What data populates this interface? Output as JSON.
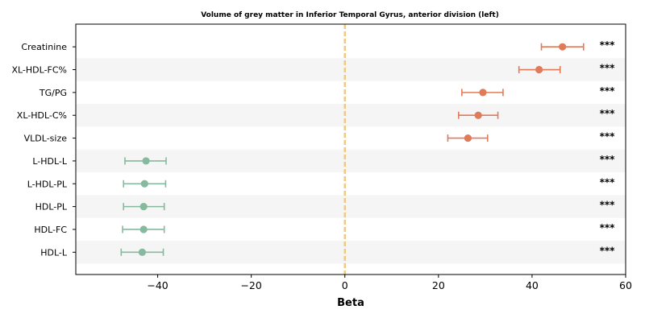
{
  "chart_data": {
    "type": "scatter",
    "subtype": "forest-plot",
    "title": "Volume of grey matter in Inferior Temporal Gyrus, anterior division (left)",
    "xlabel": "Beta",
    "ylabel": "",
    "xlim": [
      -57.5,
      60
    ],
    "xticks": [
      -40,
      -20,
      0,
      20,
      40,
      60
    ],
    "xtick_labels": [
      "−40",
      "−20",
      "0",
      "20",
      "40",
      "60"
    ],
    "reference_line": 0,
    "reference_line_color": "#f0c987",
    "positive_color": "#e07b5a",
    "negative_color": "#86b99e",
    "row_stripe_color": "#f5f5f5",
    "grid": false,
    "items": [
      {
        "label": "Creatinine",
        "beta": 46.5,
        "ci_low": 42.0,
        "ci_high": 51.0,
        "significance": "***"
      },
      {
        "label": "XL-HDL-FC%",
        "beta": 41.5,
        "ci_low": 37.2,
        "ci_high": 46.0,
        "significance": "***"
      },
      {
        "label": "TG/PG",
        "beta": 29.5,
        "ci_low": 25.0,
        "ci_high": 33.8,
        "significance": "***"
      },
      {
        "label": "XL-HDL-C%",
        "beta": 28.5,
        "ci_low": 24.3,
        "ci_high": 32.7,
        "significance": "***"
      },
      {
        "label": "VLDL-size",
        "beta": 26.3,
        "ci_low": 22.0,
        "ci_high": 30.5,
        "significance": "***"
      },
      {
        "label": "L-HDL-L",
        "beta": -42.5,
        "ci_low": -47.0,
        "ci_high": -38.2,
        "significance": "***"
      },
      {
        "label": "L-HDL-PL",
        "beta": -42.8,
        "ci_low": -47.3,
        "ci_high": -38.3,
        "significance": "***"
      },
      {
        "label": "HDL-PL",
        "beta": -43.0,
        "ci_low": -47.3,
        "ci_high": -38.6,
        "significance": "***"
      },
      {
        "label": "HDL-FC",
        "beta": -43.0,
        "ci_low": -47.5,
        "ci_high": -38.6,
        "significance": "***"
      },
      {
        "label": "HDL-L",
        "beta": -43.3,
        "ci_low": -47.8,
        "ci_high": -38.8,
        "significance": "***"
      }
    ]
  }
}
